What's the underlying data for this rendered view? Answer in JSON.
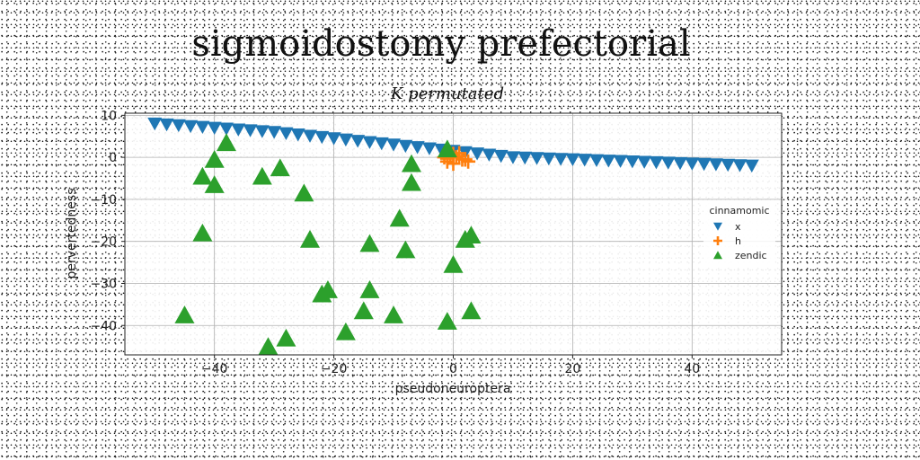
{
  "chart_data": {
    "type": "scatter",
    "title": "sigmoidostomy prefectorial",
    "subtitle": "K permutated",
    "xlabel": "pseudoneuroptera",
    "ylabel": "pervertedness",
    "xlim": [
      -55,
      55
    ],
    "ylim": [
      -47,
      10.5
    ],
    "x_ticks": [
      -40,
      -20,
      0,
      20,
      40
    ],
    "y_ticks": [
      10,
      0,
      -10,
      -20,
      -30,
      -40
    ],
    "grid": true,
    "legend": {
      "title": "cinnamomic",
      "position": "right"
    },
    "series": [
      {
        "name": "x",
        "marker": "triangle-down",
        "color": "#1f77b4",
        "x": [
          -50,
          -48,
          -46,
          -44,
          -42,
          -40,
          -38,
          -36,
          -34,
          -32,
          -30,
          -28,
          -26,
          -24,
          -22,
          -20,
          -18,
          -16,
          -14,
          -12,
          -10,
          -8,
          -6,
          -4,
          -2,
          0,
          2,
          4,
          6,
          8,
          10,
          12,
          14,
          16,
          18,
          20,
          22,
          24,
          26,
          28,
          30,
          32,
          34,
          36,
          38,
          40,
          42,
          44,
          46,
          48,
          50
        ],
        "y": [
          8,
          7.8,
          7.6,
          7.4,
          7.2,
          7,
          6.8,
          6.6,
          6.4,
          6.2,
          6,
          5.7,
          5.4,
          5.1,
          4.8,
          4.5,
          4.2,
          3.9,
          3.6,
          3.3,
          3,
          2.7,
          2.4,
          2.1,
          1.8,
          1.5,
          1.2,
          0.9,
          0.6,
          0.3,
          0,
          -0.1,
          -0.2,
          -0.3,
          -0.4,
          -0.5,
          -0.6,
          -0.7,
          -0.8,
          -0.9,
          -1,
          -1.1,
          -1.2,
          -1.3,
          -1.4,
          -1.5,
          -1.6,
          -1.7,
          -1.8,
          -1.9,
          -2
        ]
      },
      {
        "name": "h",
        "marker": "plus",
        "color": "#ff7f0e",
        "x": [
          -1.5,
          -1,
          -0.5,
          0,
          0.5,
          1,
          1.5,
          2,
          2.5,
          0,
          -1,
          1
        ],
        "y": [
          0,
          -1,
          0.5,
          -1.5,
          0,
          1,
          -0.5,
          -0.5,
          -1,
          0.8,
          -0.3,
          0.3
        ]
      },
      {
        "name": "zendic",
        "marker": "triangle-up",
        "color": "#2ca02c",
        "x": [
          -38,
          -40,
          -42,
          -40,
          -32,
          -29,
          -25,
          -42,
          -24,
          -45,
          -31,
          -28,
          -22,
          -21,
          -18,
          -15,
          -14,
          -14,
          -10,
          -9,
          -7,
          -7,
          -8,
          -1,
          -1,
          0,
          2,
          3,
          3
        ],
        "y": [
          3.5,
          -0.5,
          -4.5,
          -6.5,
          -4.5,
          -2.5,
          -8.5,
          -18,
          -19.5,
          -37.5,
          -45,
          -43,
          -32.5,
          -31.5,
          -41.5,
          -36.5,
          -31.5,
          -20.5,
          -37.5,
          -14.5,
          -1.5,
          -6,
          -22,
          2,
          -39,
          -25.5,
          -19.5,
          -18.5,
          -36.5
        ]
      }
    ]
  }
}
